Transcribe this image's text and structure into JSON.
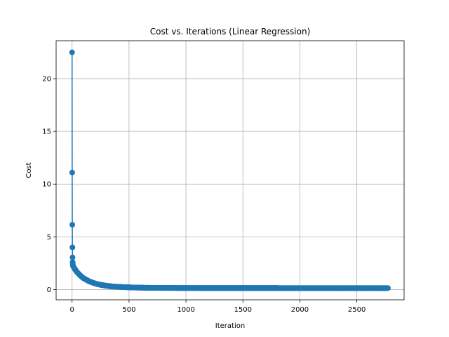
{
  "chart_data": {
    "type": "line",
    "title": "Cost vs. Iterations (Linear Regression)",
    "xlabel": "Iteration",
    "ylabel": "Cost",
    "xlim": [
      -140,
      2915
    ],
    "ylim": [
      -0.97,
      23.6
    ],
    "xticks": [
      0,
      500,
      1000,
      1500,
      2000,
      2500
    ],
    "yticks": [
      0,
      5,
      10,
      15,
      20
    ],
    "grid": true,
    "marker": "o",
    "series": [
      {
        "name": "",
        "color": "#1f77b4",
        "x": [
          0,
          1,
          2,
          3,
          4,
          5,
          6,
          7,
          8,
          10,
          15,
          20,
          30,
          40,
          50,
          75,
          100,
          150,
          200,
          250,
          300,
          350,
          400,
          450,
          500,
          550,
          600,
          650,
          700,
          750,
          800,
          900,
          1000,
          1200,
          1400,
          1600,
          1800,
          2000,
          2200,
          2400,
          2600,
          2775
        ],
        "y": [
          22.5,
          11.1,
          6.15,
          4.0,
          3.05,
          2.6,
          2.4,
          2.3,
          2.25,
          2.2,
          2.1,
          2.02,
          1.85,
          1.7,
          1.58,
          1.3,
          1.08,
          0.78,
          0.58,
          0.45,
          0.36,
          0.3,
          0.26,
          0.23,
          0.21,
          0.19,
          0.18,
          0.17,
          0.165,
          0.16,
          0.155,
          0.15,
          0.148,
          0.145,
          0.143,
          0.142,
          0.141,
          0.14,
          0.14,
          0.14,
          0.14,
          0.14
        ]
      }
    ]
  }
}
